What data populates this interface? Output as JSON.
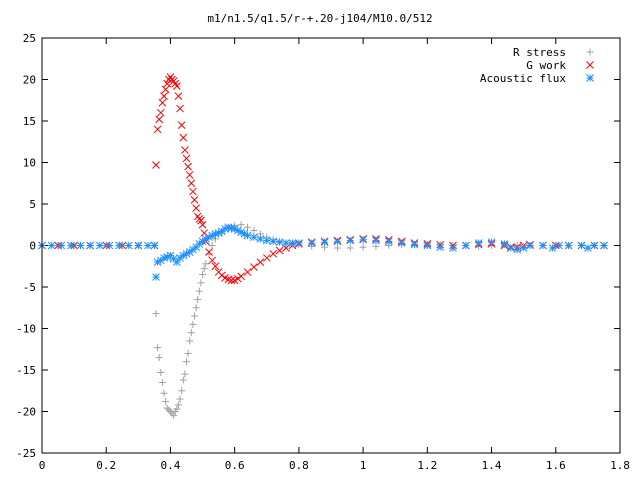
{
  "chart_data": {
    "type": "scatter",
    "title": "m1/n1.5/q1.5/r-+.20-j104/M10.0/512",
    "xlabel": "",
    "ylabel": "",
    "xlim": [
      0,
      1.8
    ],
    "ylim": [
      -25,
      25
    ],
    "x_ticks": [
      "0",
      "0.2",
      "0.4",
      "0.6",
      "0.8",
      "1",
      "1.2",
      "1.4",
      "1.6",
      "1.8"
    ],
    "y_ticks": [
      "25",
      "20",
      "15",
      "10",
      "5",
      "0",
      "-5",
      "-10",
      "-15",
      "-20",
      "-25"
    ],
    "legend_position": "top-right",
    "grid": false,
    "series": [
      {
        "name": "R stress",
        "marker": "plus",
        "color": "#a0a0a0",
        "points": [
          [
            0.0,
            0
          ],
          [
            0.05,
            0
          ],
          [
            0.1,
            0
          ],
          [
            0.15,
            0
          ],
          [
            0.2,
            0
          ],
          [
            0.25,
            0
          ],
          [
            0.3,
            0
          ],
          [
            0.35,
            0
          ],
          [
            0.355,
            -8.2
          ],
          [
            0.36,
            -12.3
          ],
          [
            0.365,
            -13.5
          ],
          [
            0.37,
            -15.3
          ],
          [
            0.375,
            -16.5
          ],
          [
            0.38,
            -17.8
          ],
          [
            0.385,
            -18.8
          ],
          [
            0.39,
            -19.6
          ],
          [
            0.395,
            -19.8
          ],
          [
            0.4,
            -20.0
          ],
          [
            0.405,
            -20.2
          ],
          [
            0.41,
            -20.5
          ],
          [
            0.415,
            -20.0
          ],
          [
            0.42,
            -19.7
          ],
          [
            0.425,
            -19.2
          ],
          [
            0.43,
            -18.5
          ],
          [
            0.435,
            -17.5
          ],
          [
            0.44,
            -16.2
          ],
          [
            0.445,
            -15.5
          ],
          [
            0.45,
            -14.0
          ],
          [
            0.455,
            -13.0
          ],
          [
            0.46,
            -11.5
          ],
          [
            0.465,
            -10.5
          ],
          [
            0.47,
            -9.5
          ],
          [
            0.475,
            -8.5
          ],
          [
            0.48,
            -7.5
          ],
          [
            0.485,
            -6.5
          ],
          [
            0.49,
            -5.5
          ],
          [
            0.495,
            -4.5
          ],
          [
            0.5,
            -3.5
          ],
          [
            0.505,
            -2.8
          ],
          [
            0.51,
            -2.2
          ],
          [
            0.52,
            -1.0
          ],
          [
            0.53,
            0
          ],
          [
            0.54,
            0.8
          ],
          [
            0.56,
            1.5
          ],
          [
            0.58,
            2.0
          ],
          [
            0.6,
            2.4
          ],
          [
            0.62,
            2.5
          ],
          [
            0.64,
            2.2
          ],
          [
            0.66,
            1.8
          ],
          [
            0.68,
            1.4
          ],
          [
            0.7,
            1.0
          ],
          [
            0.72,
            0.7
          ],
          [
            0.74,
            0.5
          ],
          [
            0.76,
            0.3
          ],
          [
            0.78,
            0.2
          ],
          [
            0.8,
            0.1
          ],
          [
            0.84,
            -0.1
          ],
          [
            0.88,
            -0.2
          ],
          [
            0.92,
            -0.3
          ],
          [
            0.96,
            -0.3
          ],
          [
            1.0,
            -0.2
          ],
          [
            1.04,
            -0.1
          ],
          [
            1.08,
            0
          ],
          [
            1.12,
            0.1
          ],
          [
            1.16,
            0.1
          ],
          [
            1.2,
            0.1
          ],
          [
            1.24,
            0.1
          ],
          [
            1.28,
            0
          ],
          [
            1.32,
            0
          ],
          [
            1.36,
            -0.1
          ],
          [
            1.4,
            0
          ],
          [
            1.44,
            0.1
          ],
          [
            1.48,
            0
          ],
          [
            1.52,
            0
          ],
          [
            1.56,
            0
          ],
          [
            1.6,
            0
          ],
          [
            1.64,
            0
          ],
          [
            1.68,
            0
          ],
          [
            1.72,
            0
          ],
          [
            1.75,
            0
          ]
        ]
      },
      {
        "name": "G work",
        "marker": "cross",
        "color": "#ff0000",
        "points": [
          [
            0.0,
            0
          ],
          [
            0.05,
            0
          ],
          [
            0.1,
            0
          ],
          [
            0.15,
            0
          ],
          [
            0.2,
            0
          ],
          [
            0.25,
            0
          ],
          [
            0.3,
            0
          ],
          [
            0.35,
            0
          ],
          [
            0.355,
            9.7
          ],
          [
            0.36,
            14.0
          ],
          [
            0.365,
            15.2
          ],
          [
            0.37,
            16.0
          ],
          [
            0.375,
            17.2
          ],
          [
            0.38,
            18.0
          ],
          [
            0.385,
            18.8
          ],
          [
            0.39,
            19.5
          ],
          [
            0.395,
            20.0
          ],
          [
            0.4,
            20.3
          ],
          [
            0.405,
            20.0
          ],
          [
            0.41,
            19.8
          ],
          [
            0.415,
            19.5
          ],
          [
            0.42,
            19.2
          ],
          [
            0.425,
            18.0
          ],
          [
            0.43,
            16.5
          ],
          [
            0.435,
            14.5
          ],
          [
            0.44,
            13.0
          ],
          [
            0.445,
            11.5
          ],
          [
            0.45,
            10.5
          ],
          [
            0.455,
            9.5
          ],
          [
            0.46,
            8.5
          ],
          [
            0.465,
            7.5
          ],
          [
            0.47,
            6.5
          ],
          [
            0.475,
            5.5
          ],
          [
            0.48,
            4.5
          ],
          [
            0.485,
            3.5
          ],
          [
            0.49,
            3.2
          ],
          [
            0.495,
            3.0
          ],
          [
            0.5,
            2.5
          ],
          [
            0.505,
            1.5
          ],
          [
            0.51,
            0.5
          ],
          [
            0.52,
            -0.8
          ],
          [
            0.53,
            -1.8
          ],
          [
            0.54,
            -2.5
          ],
          [
            0.55,
            -3.2
          ],
          [
            0.56,
            -3.6
          ],
          [
            0.57,
            -3.9
          ],
          [
            0.58,
            -4.1
          ],
          [
            0.59,
            -4.2
          ],
          [
            0.6,
            -4.2
          ],
          [
            0.61,
            -4.0
          ],
          [
            0.62,
            -3.7
          ],
          [
            0.64,
            -3.2
          ],
          [
            0.66,
            -2.6
          ],
          [
            0.68,
            -2.0
          ],
          [
            0.7,
            -1.5
          ],
          [
            0.72,
            -1.0
          ],
          [
            0.74,
            -0.6
          ],
          [
            0.76,
            -0.3
          ],
          [
            0.78,
            0
          ],
          [
            0.8,
            0.2
          ],
          [
            0.84,
            0.4
          ],
          [
            0.88,
            0.5
          ],
          [
            0.92,
            0.6
          ],
          [
            0.96,
            0.7
          ],
          [
            1.0,
            0.8
          ],
          [
            1.04,
            0.8
          ],
          [
            1.08,
            0.7
          ],
          [
            1.12,
            0.5
          ],
          [
            1.16,
            0.3
          ],
          [
            1.2,
            0.2
          ],
          [
            1.24,
            0.1
          ],
          [
            1.28,
            0
          ],
          [
            1.32,
            0
          ],
          [
            1.36,
            0.1
          ],
          [
            1.4,
            0.2
          ],
          [
            1.44,
            0
          ],
          [
            1.46,
            -0.2
          ],
          [
            1.48,
            -0.2
          ],
          [
            1.5,
            0
          ],
          [
            1.52,
            0.1
          ],
          [
            1.56,
            0
          ],
          [
            1.6,
            0
          ],
          [
            1.64,
            0
          ],
          [
            1.68,
            0
          ],
          [
            1.72,
            0
          ],
          [
            1.75,
            0
          ]
        ]
      },
      {
        "name": "Acoustic flux",
        "marker": "star",
        "color": "#1e90ff",
        "points": [
          [
            0.0,
            0
          ],
          [
            0.03,
            0
          ],
          [
            0.06,
            0
          ],
          [
            0.09,
            0
          ],
          [
            0.12,
            0
          ],
          [
            0.15,
            0
          ],
          [
            0.18,
            0
          ],
          [
            0.21,
            0
          ],
          [
            0.24,
            0
          ],
          [
            0.27,
            0
          ],
          [
            0.3,
            0
          ],
          [
            0.33,
            0
          ],
          [
            0.35,
            0
          ],
          [
            0.355,
            -3.8
          ],
          [
            0.36,
            -2.0
          ],
          [
            0.37,
            -1.8
          ],
          [
            0.38,
            -1.5
          ],
          [
            0.39,
            -1.4
          ],
          [
            0.4,
            -1.2
          ],
          [
            0.41,
            -1.6
          ],
          [
            0.42,
            -2.0
          ],
          [
            0.43,
            -1.5
          ],
          [
            0.44,
            -1.2
          ],
          [
            0.45,
            -1.0
          ],
          [
            0.46,
            -0.8
          ],
          [
            0.47,
            -0.5
          ],
          [
            0.48,
            -0.2
          ],
          [
            0.49,
            0.2
          ],
          [
            0.5,
            0.5
          ],
          [
            0.51,
            0.8
          ],
          [
            0.52,
            1.0
          ],
          [
            0.53,
            1.2
          ],
          [
            0.54,
            1.4
          ],
          [
            0.55,
            1.5
          ],
          [
            0.56,
            1.7
          ],
          [
            0.57,
            2.0
          ],
          [
            0.58,
            2.2
          ],
          [
            0.59,
            2.1
          ],
          [
            0.6,
            2.0
          ],
          [
            0.61,
            1.8
          ],
          [
            0.62,
            1.6
          ],
          [
            0.63,
            1.4
          ],
          [
            0.64,
            1.2
          ],
          [
            0.66,
            1.0
          ],
          [
            0.68,
            0.8
          ],
          [
            0.7,
            0.6
          ],
          [
            0.72,
            0.5
          ],
          [
            0.74,
            0.4
          ],
          [
            0.76,
            0.3
          ],
          [
            0.78,
            0.3
          ],
          [
            0.8,
            0.3
          ],
          [
            0.84,
            0.3
          ],
          [
            0.88,
            0.4
          ],
          [
            0.92,
            0.5
          ],
          [
            0.96,
            0.6
          ],
          [
            1.0,
            0.7
          ],
          [
            1.04,
            0.6
          ],
          [
            1.08,
            0.5
          ],
          [
            1.12,
            0.3
          ],
          [
            1.16,
            0.1
          ],
          [
            1.2,
            0
          ],
          [
            1.24,
            -0.2
          ],
          [
            1.28,
            -0.3
          ],
          [
            1.32,
            0
          ],
          [
            1.36,
            0.3
          ],
          [
            1.4,
            0.4
          ],
          [
            1.44,
            0.2
          ],
          [
            1.46,
            -0.3
          ],
          [
            1.48,
            -0.5
          ],
          [
            1.5,
            -0.3
          ],
          [
            1.52,
            0
          ],
          [
            1.56,
            0
          ],
          [
            1.59,
            -0.3
          ],
          [
            1.61,
            0
          ],
          [
            1.64,
            0
          ],
          [
            1.68,
            0
          ],
          [
            1.7,
            -0.3
          ],
          [
            1.72,
            0
          ],
          [
            1.75,
            0
          ]
        ]
      }
    ]
  }
}
